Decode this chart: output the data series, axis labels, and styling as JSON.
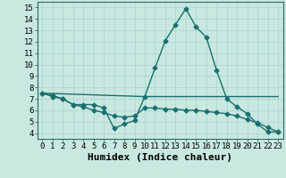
{
  "title": "",
  "xlabel": "Humidex (Indice chaleur)",
  "ylabel": "",
  "background_color": "#c8e8e0",
  "line_color": "#1a7070",
  "grid_color": "#b0d8d0",
  "xlim": [
    -0.5,
    23.5
  ],
  "ylim": [
    3.5,
    15.5
  ],
  "xticks": [
    0,
    1,
    2,
    3,
    4,
    5,
    6,
    7,
    8,
    9,
    10,
    11,
    12,
    13,
    14,
    15,
    16,
    17,
    18,
    19,
    20,
    21,
    22,
    23
  ],
  "yticks": [
    4,
    5,
    6,
    7,
    8,
    9,
    10,
    11,
    12,
    13,
    14,
    15
  ],
  "series1_x": [
    0,
    1,
    2,
    3,
    4,
    5,
    6,
    7,
    8,
    9,
    10,
    11,
    12,
    13,
    14,
    15,
    16,
    17,
    18,
    19,
    20,
    21,
    22,
    23
  ],
  "series1_y": [
    7.5,
    7.3,
    7.0,
    6.5,
    6.5,
    6.5,
    6.2,
    4.4,
    4.8,
    5.1,
    7.2,
    9.7,
    12.1,
    13.5,
    14.9,
    13.3,
    12.4,
    9.5,
    7.0,
    6.3,
    5.7,
    4.8,
    4.1,
    4.1
  ],
  "series2_x": [
    0,
    1,
    2,
    3,
    4,
    5,
    6,
    7,
    8,
    9,
    10,
    11,
    12,
    13,
    14,
    15,
    16,
    17,
    18,
    19,
    20,
    21,
    22,
    23
  ],
  "series2_y": [
    7.5,
    7.2,
    7.0,
    6.5,
    6.3,
    6.0,
    5.8,
    5.5,
    5.4,
    5.5,
    6.2,
    6.2,
    6.1,
    6.1,
    6.0,
    6.0,
    5.9,
    5.8,
    5.7,
    5.5,
    5.2,
    4.9,
    4.5,
    4.1
  ],
  "series3_x": [
    0,
    10,
    11,
    12,
    13,
    14,
    15,
    16,
    17,
    18,
    19,
    23
  ],
  "series3_y": [
    7.5,
    7.2,
    7.2,
    7.2,
    7.2,
    7.2,
    7.2,
    7.2,
    7.2,
    7.2,
    7.2,
    7.2
  ],
  "marker": "D",
  "markersize": 2.5,
  "linewidth": 1.0,
  "xlabel_fontsize": 8,
  "tick_fontsize": 6.5
}
